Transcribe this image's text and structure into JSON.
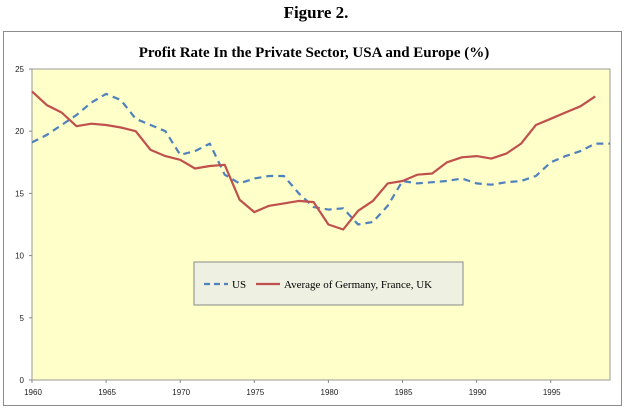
{
  "figure": {
    "title": "Figure 2."
  },
  "chart_data": {
    "type": "line",
    "title": "Profit Rate In the Private Sector, USA and Europe (%)",
    "xlabel": "",
    "ylabel": "",
    "xlim": [
      1960,
      1999
    ],
    "ylim": [
      0,
      25
    ],
    "x_ticks": [
      1960,
      1965,
      1970,
      1975,
      1980,
      1985,
      1990,
      1995
    ],
    "y_ticks": [
      0,
      5,
      10,
      15,
      20,
      25
    ],
    "grid": false,
    "legend_position": "center",
    "plot_background": "#ffffc9",
    "x": [
      1960,
      1961,
      1962,
      1963,
      1964,
      1965,
      1966,
      1967,
      1968,
      1969,
      1970,
      1971,
      1972,
      1973,
      1974,
      1975,
      1976,
      1977,
      1978,
      1979,
      1980,
      1981,
      1982,
      1983,
      1984,
      1985,
      1986,
      1987,
      1988,
      1989,
      1990,
      1991,
      1992,
      1993,
      1994,
      1995,
      1996,
      1997,
      1998,
      1999
    ],
    "series": [
      {
        "name": "US",
        "color": "#4f81bd",
        "style": "dashed",
        "values": [
          19.1,
          19.7,
          20.5,
          21.3,
          22.3,
          23.0,
          22.5,
          21.0,
          20.5,
          20.0,
          18.1,
          18.4,
          19.0,
          16.5,
          15.8,
          16.2,
          16.4,
          16.4,
          15.0,
          13.9,
          13.7,
          13.8,
          12.5,
          12.7,
          14.0,
          16.0,
          15.8,
          15.9,
          16.0,
          16.2,
          15.8,
          15.7,
          15.9,
          16.0,
          16.4,
          17.5,
          18.0,
          18.4,
          19.0,
          19.0
        ]
      },
      {
        "name": "Average of Germany, France, UK",
        "color": "#c0504d",
        "style": "solid",
        "values": [
          23.2,
          22.1,
          21.5,
          20.4,
          20.6,
          20.5,
          20.3,
          20.0,
          18.5,
          18.0,
          17.7,
          17.0,
          17.2,
          17.3,
          14.5,
          13.5,
          14.0,
          14.2,
          14.4,
          14.3,
          12.5,
          12.1,
          13.6,
          14.4,
          15.8,
          16.0,
          16.5,
          16.6,
          17.5,
          17.9,
          18.0,
          17.8,
          18.2,
          19.0,
          20.5,
          21.0,
          21.5,
          22.0,
          22.8,
          null
        ]
      }
    ]
  }
}
